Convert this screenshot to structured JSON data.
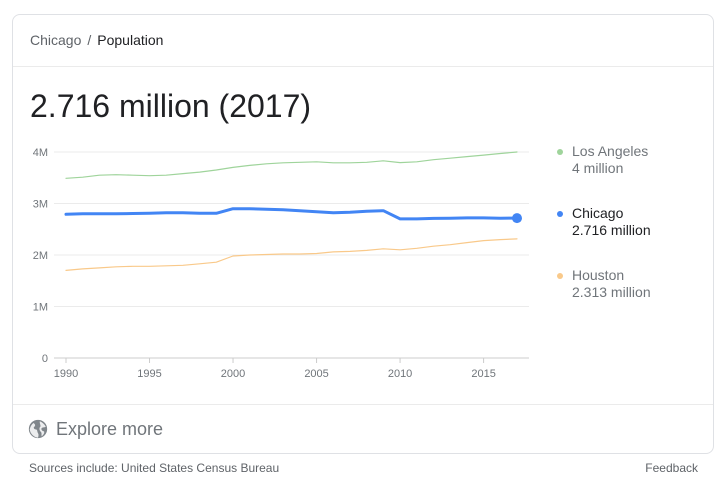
{
  "breadcrumb": {
    "parent": "Chicago",
    "separator": "/",
    "current": "Population"
  },
  "headline": "2.716 million (2017)",
  "explore": {
    "label": "Explore more",
    "icon": "globe-icon"
  },
  "footer": {
    "sources": "Sources include: United States Census Bureau",
    "feedback": "Feedback"
  },
  "chart_data": {
    "type": "line",
    "title": "",
    "xlabel": "",
    "ylabel": "",
    "xlim": [
      1990,
      2017
    ],
    "ylim": [
      0,
      4000000
    ],
    "x_ticks": [
      1990,
      1995,
      2000,
      2005,
      2010,
      2015
    ],
    "x_tick_labels": [
      "1990",
      "1995",
      "2000",
      "2005",
      "2010",
      "2015"
    ],
    "y_ticks": [
      0,
      1000000,
      2000000,
      3000000,
      4000000
    ],
    "y_tick_labels": [
      "0",
      "1M",
      "2M",
      "3M",
      "4M"
    ],
    "grid": true,
    "legend_position": "right",
    "x": [
      1990,
      1991,
      1992,
      1993,
      1994,
      1995,
      1996,
      1997,
      1998,
      1999,
      2000,
      2001,
      2002,
      2003,
      2004,
      2005,
      2006,
      2007,
      2008,
      2009,
      2010,
      2011,
      2012,
      2013,
      2014,
      2015,
      2016,
      2017
    ],
    "series": [
      {
        "name": "Los Angeles",
        "value_label": "4 million",
        "color": "#9fd49b",
        "highlight": false,
        "values": [
          3490000,
          3510000,
          3550000,
          3560000,
          3550000,
          3540000,
          3550000,
          3580000,
          3610000,
          3650000,
          3700000,
          3740000,
          3770000,
          3790000,
          3800000,
          3810000,
          3790000,
          3790000,
          3800000,
          3830000,
          3795000,
          3810000,
          3850000,
          3880000,
          3910000,
          3940000,
          3970000,
          4000000
        ]
      },
      {
        "name": "Chicago",
        "value_label": "2.716 million",
        "color": "#4285f4",
        "highlight": true,
        "values": [
          2790000,
          2800000,
          2800000,
          2800000,
          2805000,
          2810000,
          2820000,
          2820000,
          2810000,
          2810000,
          2900000,
          2900000,
          2890000,
          2880000,
          2860000,
          2840000,
          2820000,
          2830000,
          2850000,
          2860000,
          2700000,
          2700000,
          2710000,
          2715000,
          2720000,
          2720000,
          2715000,
          2716000
        ]
      },
      {
        "name": "Houston",
        "value_label": "2.313 million",
        "color": "#f9c98a",
        "highlight": false,
        "values": [
          1700000,
          1730000,
          1750000,
          1770000,
          1780000,
          1780000,
          1790000,
          1800000,
          1830000,
          1860000,
          1980000,
          2000000,
          2010000,
          2020000,
          2020000,
          2030000,
          2060000,
          2070000,
          2090000,
          2120000,
          2100000,
          2130000,
          2170000,
          2200000,
          2240000,
          2280000,
          2300000,
          2313000
        ]
      }
    ]
  }
}
